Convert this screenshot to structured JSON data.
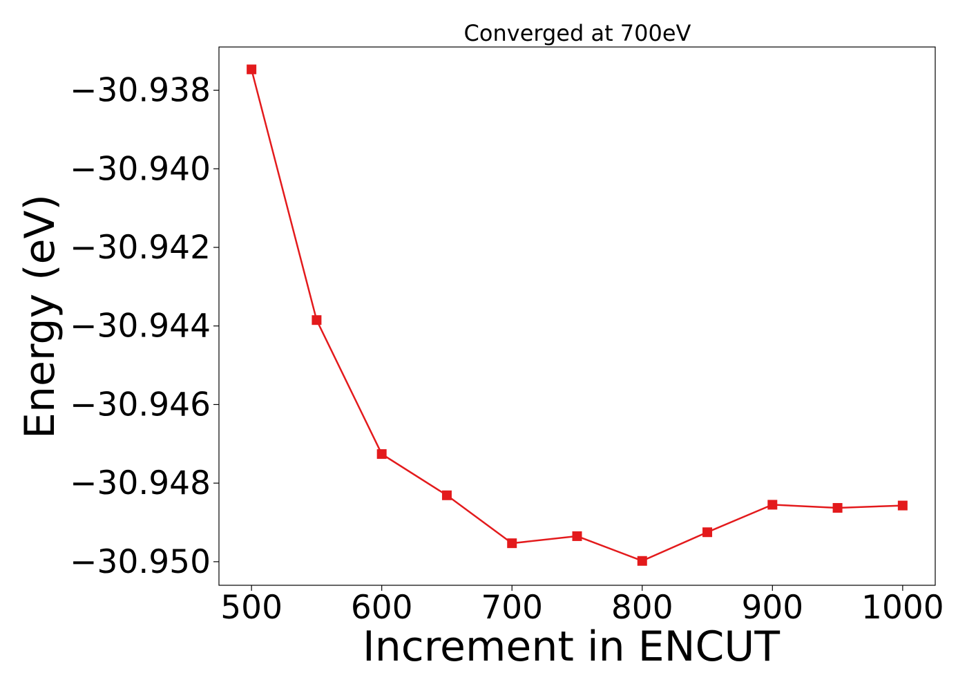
{
  "chart_data": {
    "type": "line",
    "title": "Converged at 700eV",
    "xlabel": "Increment in ENCUT",
    "ylabel": "Energy (eV)",
    "x": [
      500,
      550,
      600,
      650,
      700,
      750,
      800,
      850,
      900,
      950,
      1000
    ],
    "series": [
      {
        "name": "",
        "values": [
          -30.93747,
          -30.94385,
          -30.94726,
          -30.94831,
          -30.94953,
          -30.94935,
          -30.94998,
          -30.94925,
          -30.94855,
          -30.94863,
          -30.94857
        ]
      }
    ],
    "xlim": [
      475,
      1025
    ],
    "ylim": [
      -30.9506,
      -30.9369
    ],
    "xticks": [
      500,
      600,
      700,
      800,
      900,
      1000
    ],
    "yticks": [
      -30.938,
      -30.94,
      -30.942,
      -30.944,
      -30.946,
      -30.948,
      -30.95
    ],
    "xtick_labels": [
      "500",
      "600",
      "700",
      "800",
      "900",
      "1000"
    ],
    "ytick_labels": [
      "−30.938",
      "−30.940",
      "−30.942",
      "−30.944",
      "−30.946",
      "−30.948",
      "−30.950"
    ],
    "grid": false,
    "line_color": "#e31a1c",
    "marker": "square"
  }
}
